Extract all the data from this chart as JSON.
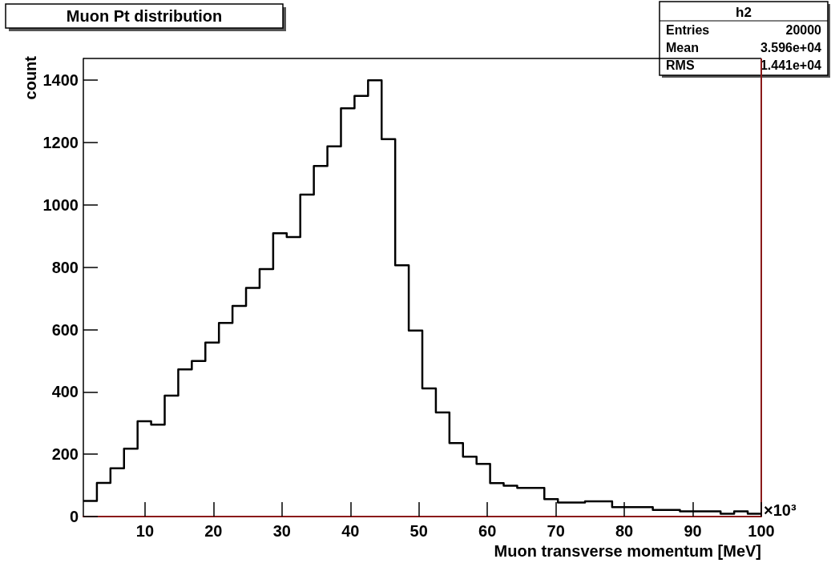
{
  "chart_data": {
    "type": "histogram",
    "title": "Muon Pt distribution",
    "xlabel": "Muon transverse momentum [MeV]",
    "ylabel": "count",
    "bins": [
      1,
      2.98,
      4.96,
      6.94,
      8.92,
      10.9,
      12.88,
      14.86,
      16.84,
      18.82,
      20.8,
      22.78,
      24.76,
      26.74,
      28.72,
      30.7,
      32.68,
      34.66,
      36.64,
      38.62,
      40.6,
      42.58,
      44.56,
      46.54,
      48.52,
      50.5,
      52.48,
      54.46,
      56.44,
      58.42,
      60.4,
      62.38,
      64.36,
      66.34,
      68.32,
      70.3,
      72.28,
      74.26,
      76.24,
      78.22,
      80.2,
      82.18,
      84.16,
      86.14,
      88.12,
      90.1,
      92.08,
      94.06,
      96.04,
      98.02,
      100
    ],
    "values": [
      50,
      108,
      155,
      218,
      306,
      295,
      388,
      472,
      499,
      558,
      621,
      676,
      734,
      794,
      909,
      897,
      1033,
      1125,
      1188,
      1310,
      1350,
      1400,
      1211,
      806,
      597,
      411,
      334,
      236,
      192,
      169,
      107,
      99,
      92,
      92,
      56,
      45,
      45,
      49,
      49,
      30,
      30,
      30,
      21,
      21,
      17,
      17,
      17,
      9,
      17,
      9
    ],
    "color": "#000000",
    "xlim": [
      1,
      100
    ],
    "xticks": [
      10,
      20,
      30,
      40,
      50,
      60,
      70,
      80,
      90,
      100
    ],
    "ylim": [
      0,
      1470
    ],
    "yticks": [
      0,
      200,
      400,
      600,
      800,
      1000,
      1200,
      1400
    ],
    "grid": false,
    "annotations": [
      "h2",
      "Entries",
      "20000",
      "Mean",
      "3.596e+04",
      "RMS",
      "1.441e+04",
      "×10³"
    ]
  }
}
